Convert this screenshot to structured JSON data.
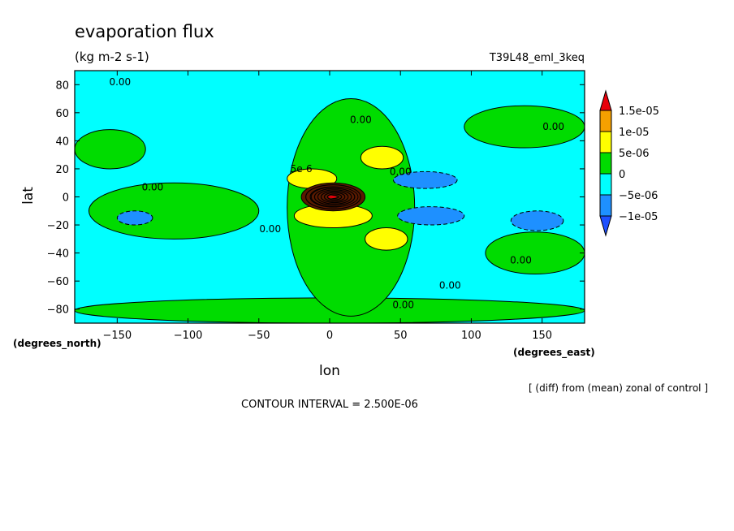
{
  "chart_data": {
    "type": "heatmap",
    "title": "evaporation flux",
    "units": "(kg m-2 s-1)",
    "run_label": "T39L48_eml_3keq",
    "xlabel": "lon",
    "ylabel": "lat",
    "x_units": "(degrees_east)",
    "y_units": "(degrees_north)",
    "xlim": [
      -180,
      180
    ],
    "ylim": [
      -90,
      90
    ],
    "x_ticks": [
      -150,
      -100,
      -50,
      0,
      50,
      100,
      150
    ],
    "y_ticks": [
      -80,
      -60,
      -40,
      -20,
      0,
      20,
      40,
      60,
      80
    ],
    "note": "[ (diff) from (mean) zonal of control ]",
    "contour_interval": "CONTOUR INTERVAL = 2.500E-06",
    "colorbar": {
      "labels": [
        "1.5e-05",
        "1e-05",
        "5e-06",
        "0",
        "-5e-06",
        "-1e-05"
      ],
      "colors": [
        "#e8000b",
        "#f5a000",
        "#ffff00",
        "#00dc00",
        "#00ffff",
        "#1e90ff",
        "#1e50ff"
      ]
    },
    "background_color": "#00ffff",
    "features": [
      {
        "kind": "positive",
        "level": 2e-06,
        "lon": [
          -180,
          -130
        ],
        "lat": [
          20,
          48
        ]
      },
      {
        "kind": "positive",
        "level": 2e-06,
        "lon": [
          -180,
          180
        ],
        "lat": [
          -90,
          -72
        ]
      },
      {
        "kind": "positive",
        "level": 2e-06,
        "lon": [
          -30,
          60
        ],
        "lat": [
          -85,
          70
        ]
      },
      {
        "kind": "positive",
        "level": 2e-06,
        "lon": [
          -170,
          -50
        ],
        "lat": [
          -30,
          10
        ]
      },
      {
        "kind": "positive",
        "level": 2e-06,
        "lon": [
          110,
          180
        ],
        "lat": [
          -55,
          -25
        ]
      },
      {
        "kind": "positive",
        "level": 2e-06,
        "lon": [
          95,
          180
        ],
        "lat": [
          35,
          65
        ]
      },
      {
        "kind": "positive",
        "level": 7.5e-06,
        "lon": [
          -30,
          5
        ],
        "lat": [
          6,
          20
        ]
      },
      {
        "kind": "positive",
        "level": 7.5e-06,
        "lon": [
          -25,
          30
        ],
        "lat": [
          -22,
          -5
        ]
      },
      {
        "kind": "positive",
        "level": 7.5e-06,
        "lon": [
          25,
          55
        ],
        "lat": [
          -38,
          -22
        ]
      },
      {
        "kind": "positive",
        "level": 7.5e-06,
        "lon": [
          22,
          52
        ],
        "lat": [
          20,
          36
        ]
      },
      {
        "kind": "positive",
        "level": 1.25e-05,
        "lon": [
          -20,
          25
        ],
        "lat": [
          -10,
          10
        ]
      },
      {
        "kind": "positive",
        "level": 2.5e-05,
        "lon": [
          -13,
          20
        ],
        "lat": [
          -7,
          7
        ]
      },
      {
        "kind": "negative",
        "level": -6e-06,
        "lon": [
          45,
          90
        ],
        "lat": [
          6,
          18
        ]
      },
      {
        "kind": "negative",
        "level": -6e-06,
        "lon": [
          48,
          95
        ],
        "lat": [
          -20,
          -7
        ]
      },
      {
        "kind": "negative",
        "level": -6e-06,
        "lon": [
          128,
          165
        ],
        "lat": [
          -24,
          -10
        ]
      },
      {
        "kind": "negative",
        "level": -6e-06,
        "lon": [
          -150,
          -125
        ],
        "lat": [
          -20,
          -10
        ]
      }
    ],
    "contour_labels": [
      {
        "text": "0.00",
        "lon": -148,
        "lat": 82
      },
      {
        "text": "0.00",
        "lon": 22,
        "lat": 55
      },
      {
        "text": "0.00",
        "lon": 158,
        "lat": 50
      },
      {
        "text": "0.00",
        "lon": 50,
        "lat": 18
      },
      {
        "text": "0.00",
        "lon": -125,
        "lat": 7
      },
      {
        "text": "5e-6",
        "lon": -20,
        "lat": 20
      },
      {
        "text": "0.00",
        "lon": -42,
        "lat": -23
      },
      {
        "text": "0.00",
        "lon": 135,
        "lat": -45
      },
      {
        "text": "0.00",
        "lon": 85,
        "lat": -63
      },
      {
        "text": "0.00",
        "lon": 52,
        "lat": -77
      }
    ]
  }
}
